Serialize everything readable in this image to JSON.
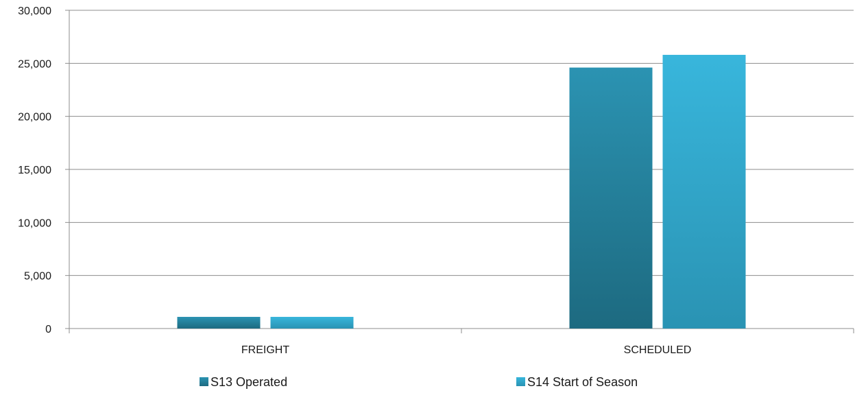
{
  "chart_data": {
    "type": "bar",
    "categories": [
      "FREIGHT",
      "SCHEDULED"
    ],
    "series": [
      {
        "name": "S13 Operated",
        "values": [
          1100,
          24600
        ],
        "color": "#23809a"
      },
      {
        "name": "S14 Start of Season",
        "values": [
          1100,
          25800
        ],
        "color": "#32b0d6"
      }
    ],
    "ylim": [
      0,
      30000
    ],
    "yticks": [
      0,
      5000,
      10000,
      15000,
      20000,
      25000,
      30000
    ],
    "ytick_labels": [
      "0",
      "5,000",
      "10,000",
      "15,000",
      "20,000",
      "25,000",
      "30,000"
    ],
    "grid": true,
    "legend": "bottom"
  }
}
